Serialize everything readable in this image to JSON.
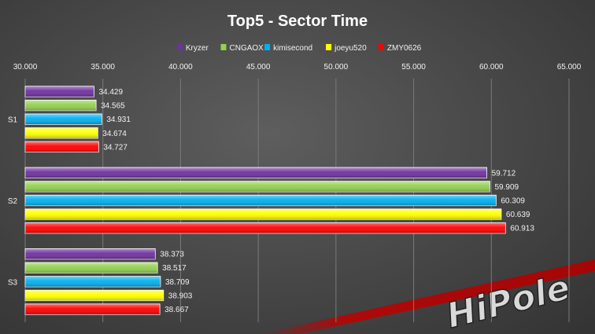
{
  "chart_data": {
    "type": "bar",
    "orientation": "horizontal",
    "title": "Top5 - Sector Time",
    "categories": [
      "S1",
      "S2",
      "S3"
    ],
    "series": [
      {
        "name": "Kryzer",
        "color": "#7030a0",
        "values": [
          34.429,
          59.712,
          38.373
        ]
      },
      {
        "name": "CNGAOX",
        "color": "#92d050",
        "values": [
          34.565,
          59.909,
          38.517
        ]
      },
      {
        "name": "kimisecond",
        "color": "#00b0f0",
        "values": [
          34.931,
          60.309,
          38.709
        ]
      },
      {
        "name": "joeyu520",
        "color": "#ffff00",
        "values": [
          34.674,
          60.639,
          38.903
        ]
      },
      {
        "name": "ZMY0626",
        "color": "#ff0000",
        "values": [
          34.727,
          60.913,
          38.667
        ]
      }
    ],
    "value_labels": [
      [
        "34.429",
        "59.712",
        "38.373"
      ],
      [
        "34.565",
        "59.909",
        "38.517"
      ],
      [
        "34.931",
        "60.309",
        "38.709"
      ],
      [
        "34.674",
        "60.639",
        "38.903"
      ],
      [
        "34.727",
        "60.913",
        "38.667"
      ]
    ],
    "xlim": [
      30,
      65
    ],
    "xticks": [
      30,
      35,
      40,
      45,
      50,
      55,
      60,
      65
    ],
    "xtick_labels": [
      "30.000",
      "35.000",
      "40.000",
      "45.000",
      "50.000",
      "55.000",
      "60.000",
      "65.000"
    ],
    "x_axis_position": "top",
    "legend_position": "top",
    "grid": true,
    "xlabel": "",
    "ylabel": ""
  },
  "watermark": {
    "text": "HiPole"
  }
}
